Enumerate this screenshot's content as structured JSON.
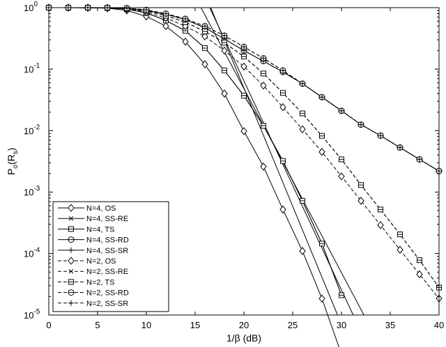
{
  "chart_data": {
    "type": "line",
    "title": "",
    "xlabel": "1/β (dB)",
    "ylabel": "P_o(R_s)",
    "ylabel_main": "P",
    "ylabel_sub1": "o",
    "ylabel_mid": "(R",
    "ylabel_sub2": "s",
    "ylabel_end": ")",
    "xlim": [
      0,
      40
    ],
    "ylim": [
      1e-05,
      1
    ],
    "yscale": "log",
    "grid": false,
    "legend_position": "bottom-left",
    "x_ticks": [
      0,
      5,
      10,
      15,
      20,
      25,
      30,
      35,
      40
    ],
    "x_tick_labels": [
      "0",
      "5",
      "10",
      "15",
      "20",
      "25",
      "30",
      "35",
      "40"
    ],
    "y_ticks": [
      {
        "value": 1,
        "base": "10",
        "exp": "0"
      },
      {
        "value": 0.1,
        "base": "10",
        "exp": "-1"
      },
      {
        "value": 0.01,
        "base": "10",
        "exp": "-2"
      },
      {
        "value": 0.001,
        "base": "10",
        "exp": "-3"
      },
      {
        "value": 0.0001,
        "base": "10",
        "exp": "-4"
      },
      {
        "value": 1e-05,
        "base": "10",
        "exp": "-5"
      }
    ],
    "series": [
      {
        "name": "N=4, OS",
        "dashed": false,
        "marker": "diamond",
        "x": [
          0,
          2,
          4,
          6,
          8,
          10,
          12,
          14,
          16,
          18,
          20,
          22,
          24,
          26,
          28,
          30
        ],
        "y": [
          1,
          0.999,
          0.995,
          0.98,
          0.9,
          0.72,
          0.5,
          0.28,
          0.12,
          0.04,
          0.0098,
          0.0026,
          0.00052,
          0.00011,
          1.85e-05,
          2.3e-06
        ]
      },
      {
        "name": "N=4, SS-RE",
        "dashed": false,
        "marker": "x",
        "x": [
          0,
          2,
          4,
          6,
          8,
          10,
          12,
          14,
          16,
          18,
          20,
          22,
          24,
          26,
          28,
          30
        ],
        "y": [
          1,
          0.999,
          0.997,
          0.99,
          0.95,
          0.82,
          0.62,
          0.42,
          0.22,
          0.095,
          0.037,
          0.012,
          0.0032,
          0.00072,
          0.000145,
          2.1e-05
        ]
      },
      {
        "name": "N=4, TS",
        "dashed": false,
        "marker": "ts",
        "x": [
          0,
          2,
          4,
          6,
          8,
          10,
          12,
          14,
          16,
          18,
          20,
          22,
          24,
          26,
          28,
          30
        ],
        "y": [
          1,
          0.999,
          0.997,
          0.99,
          0.95,
          0.82,
          0.62,
          0.42,
          0.22,
          0.095,
          0.037,
          0.012,
          0.0032,
          0.00072,
          0.000145,
          2.1e-05
        ]
      },
      {
        "name": "N=4, SS-RD",
        "dashed": false,
        "marker": "circle",
        "x": [
          0,
          2,
          4,
          6,
          8,
          10,
          12,
          14,
          16,
          18,
          20,
          22,
          24,
          26,
          28,
          30,
          32,
          34,
          36,
          38,
          40
        ],
        "y": [
          1,
          0.999,
          0.998,
          0.995,
          0.98,
          0.9,
          0.78,
          0.64,
          0.47,
          0.31,
          0.2,
          0.135,
          0.09,
          0.058,
          0.035,
          0.021,
          0.0125,
          0.0083,
          0.0053,
          0.0034,
          0.0022
        ]
      },
      {
        "name": "N=4, SS-SR",
        "dashed": false,
        "marker": "plus",
        "x": [
          0,
          2,
          4,
          6,
          8,
          10,
          12,
          14,
          16,
          18,
          20,
          22,
          24,
          26,
          28,
          30,
          32,
          34,
          36,
          38,
          40
        ],
        "y": [
          1,
          0.999,
          0.998,
          0.995,
          0.98,
          0.9,
          0.78,
          0.64,
          0.47,
          0.31,
          0.2,
          0.135,
          0.09,
          0.058,
          0.035,
          0.021,
          0.0125,
          0.0083,
          0.0053,
          0.0034,
          0.0022
        ]
      },
      {
        "name": "N=2, OS",
        "dashed": true,
        "marker": "diamond",
        "x": [
          0,
          2,
          4,
          6,
          8,
          10,
          12,
          14,
          16,
          18,
          20,
          22,
          24,
          26,
          28,
          30,
          32,
          34,
          36,
          38,
          40
        ],
        "y": [
          1,
          0.999,
          0.998,
          0.99,
          0.95,
          0.84,
          0.68,
          0.5,
          0.34,
          0.2,
          0.11,
          0.054,
          0.024,
          0.0105,
          0.0045,
          0.0018,
          0.00072,
          0.00029,
          0.000115,
          4.6e-05,
          1.85e-05
        ]
      },
      {
        "name": "N=2, SS-RE",
        "dashed": true,
        "marker": "x",
        "x": [
          0,
          2,
          4,
          6,
          8,
          10,
          12,
          14,
          16,
          18,
          20,
          22,
          24,
          26,
          28,
          30,
          32,
          34,
          36,
          38,
          40
        ],
        "y": [
          1,
          0.999,
          0.998,
          0.99,
          0.96,
          0.88,
          0.74,
          0.58,
          0.41,
          0.27,
          0.16,
          0.085,
          0.041,
          0.019,
          0.0082,
          0.0034,
          0.0013,
          0.00052,
          0.000205,
          7.8e-05,
          2.8e-05
        ]
      },
      {
        "name": "N=2, TS",
        "dashed": true,
        "marker": "ts",
        "x": [
          0,
          2,
          4,
          6,
          8,
          10,
          12,
          14,
          16,
          18,
          20,
          22,
          24,
          26,
          28,
          30,
          32,
          34,
          36,
          38,
          40
        ],
        "y": [
          1,
          0.999,
          0.998,
          0.99,
          0.96,
          0.88,
          0.74,
          0.58,
          0.41,
          0.27,
          0.16,
          0.085,
          0.041,
          0.019,
          0.0082,
          0.0034,
          0.0013,
          0.00052,
          0.000205,
          7.8e-05,
          2.8e-05
        ]
      },
      {
        "name": "N=2, SS-RD",
        "dashed": true,
        "marker": "circle",
        "x": [
          0,
          2,
          4,
          6,
          8,
          10,
          12,
          14,
          16,
          18,
          20,
          22,
          24,
          26,
          28,
          30,
          32,
          34,
          36,
          38,
          40
        ],
        "y": [
          1,
          0.999,
          0.998,
          0.995,
          0.98,
          0.92,
          0.8,
          0.66,
          0.5,
          0.35,
          0.23,
          0.15,
          0.095,
          0.058,
          0.035,
          0.021,
          0.0125,
          0.0083,
          0.0053,
          0.0034,
          0.0022
        ]
      },
      {
        "name": "N=2, SS-SR",
        "dashed": true,
        "marker": "plus",
        "x": [
          0,
          2,
          4,
          6,
          8,
          10,
          12,
          14,
          16,
          18,
          20,
          22,
          24,
          26,
          28,
          30,
          32,
          34,
          36,
          38,
          40
        ],
        "y": [
          1,
          0.999,
          0.998,
          0.995,
          0.98,
          0.92,
          0.8,
          0.66,
          0.5,
          0.35,
          0.23,
          0.15,
          0.095,
          0.058,
          0.035,
          0.021,
          0.0125,
          0.0083,
          0.0053,
          0.0034,
          0.0022
        ]
      }
    ],
    "asymptotes": [
      {
        "x": [
          16.6,
          29.6
        ],
        "y": [
          1,
          1e-05
        ]
      },
      {
        "x": [
          15.6,
          32.3
        ],
        "y": [
          1,
          1e-05
        ]
      },
      {
        "x": [
          16.5,
          31.2
        ],
        "y": [
          1,
          1e-05
        ]
      }
    ]
  }
}
